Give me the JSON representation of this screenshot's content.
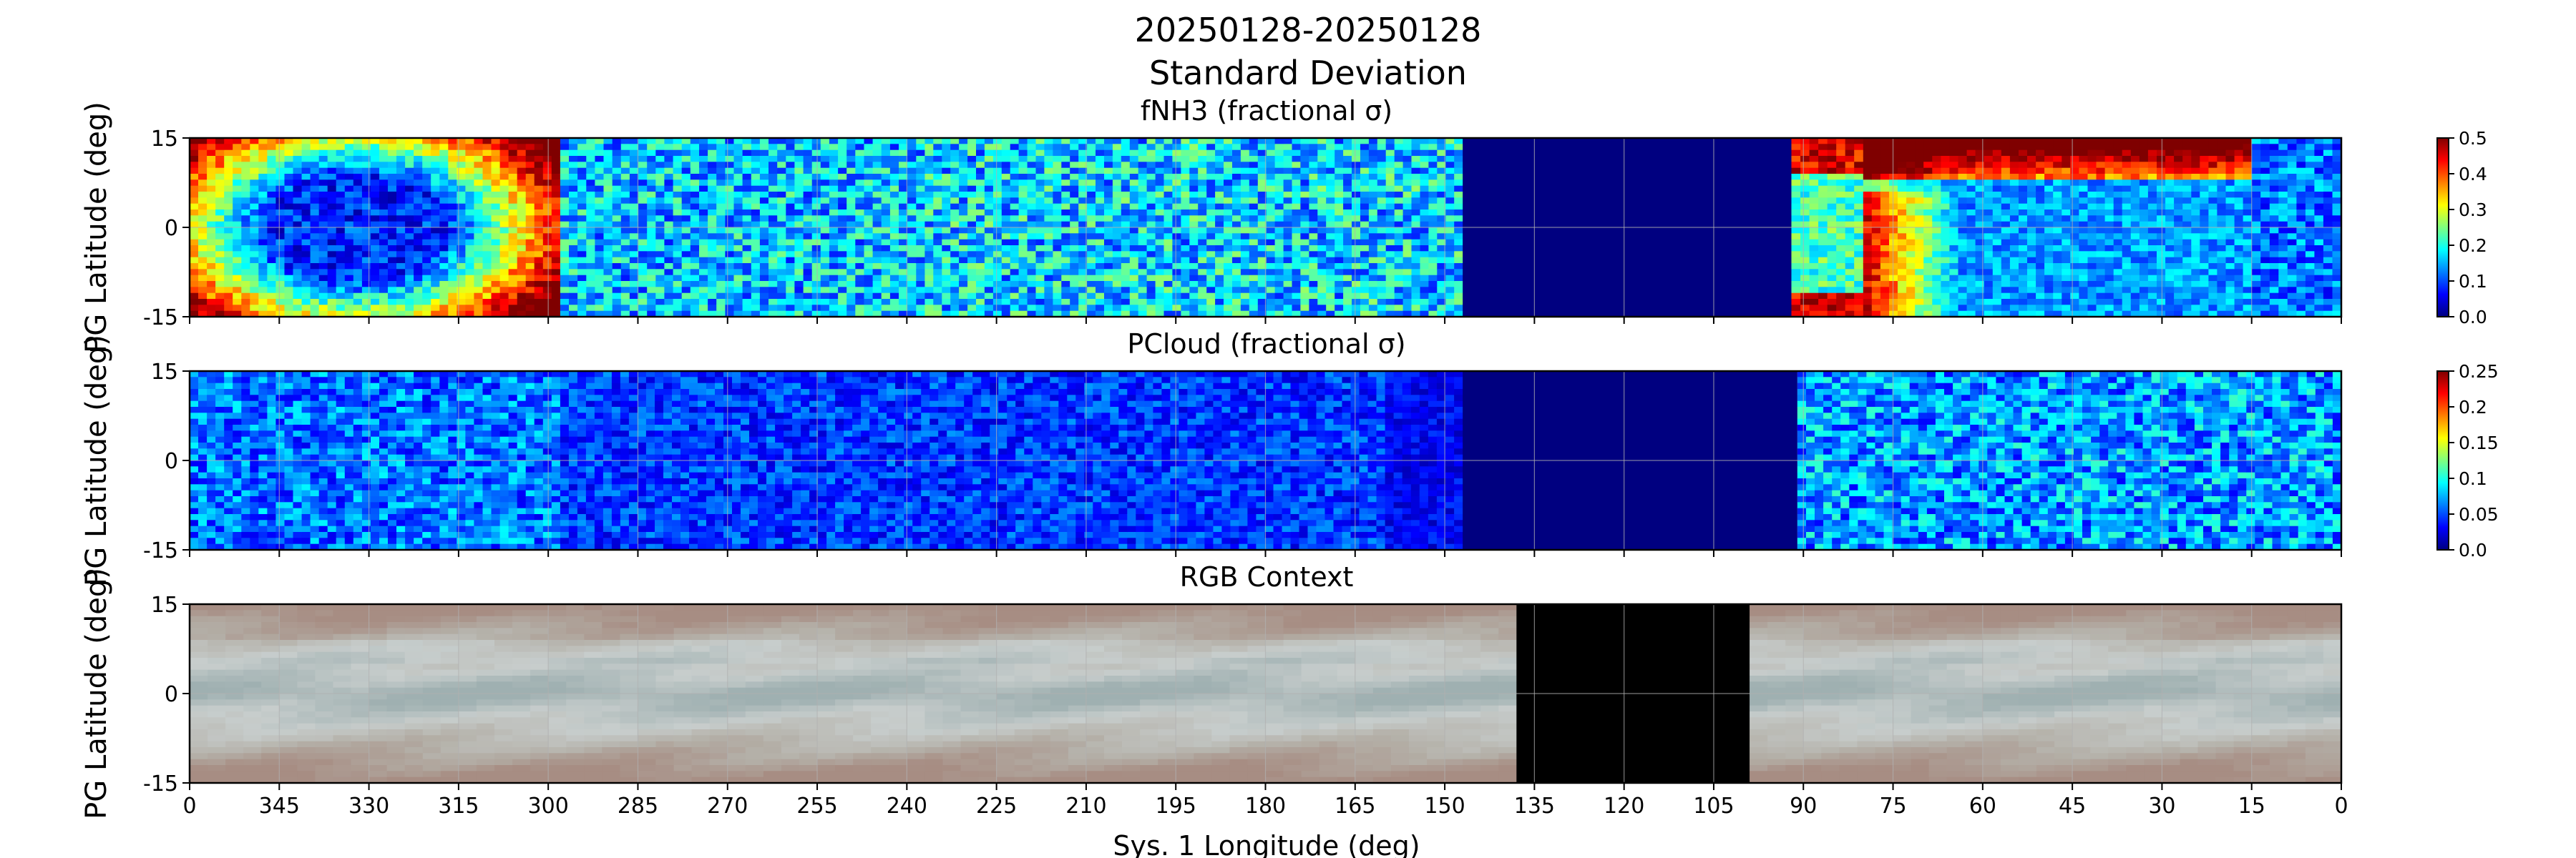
{
  "figure": {
    "title_line1": "20250128-20250128",
    "title_line2": "Standard Deviation",
    "xlabel": "Sys. 1 Longitude (deg)",
    "xticks": [
      "0",
      "345",
      "330",
      "315",
      "300",
      "285",
      "270",
      "255",
      "240",
      "225",
      "210",
      "195",
      "180",
      "165",
      "150",
      "135",
      "120",
      "105",
      "90",
      "75",
      "60",
      "45",
      "30",
      "15",
      "0"
    ]
  },
  "colors": {
    "background": "#ffffff",
    "frame": "#000000",
    "grid": "#b0b0b0",
    "missing": "#000080",
    "rgb_missing": "#000000",
    "jet_stops": [
      "#00007f",
      "#0000ff",
      "#007fff",
      "#00ffff",
      "#7fff7f",
      "#ffff00",
      "#ff7f00",
      "#ff0000",
      "#7f0000"
    ],
    "rgb_stops": [
      "#a78d83",
      "#b4b0a8",
      "#c7cdcc",
      "#9fb0b1"
    ]
  },
  "chart_data": [
    {
      "type": "heatmap",
      "title": "fNH3 (fractional σ)",
      "ylabel": "PG Latitude (deg)",
      "xlabel": "",
      "xlim": [
        360,
        0
      ],
      "ylim": [
        -15,
        15
      ],
      "yticks": [
        "15",
        "0",
        "-15"
      ],
      "colormap": "jet",
      "colorbar": {
        "min": 0.0,
        "max": 0.5,
        "ticks": [
          "0.0",
          "0.1",
          "0.2",
          "0.3",
          "0.4",
          "0.5"
        ]
      },
      "grid": true,
      "swaths": [
        {
          "lon_start": 360,
          "lon_end": 298,
          "mean": 0.38,
          "pattern": "ring"
        },
        {
          "lon_start": 298,
          "lon_end": 237,
          "mean": 0.16,
          "pattern": "patchy"
        },
        {
          "lon_start": 237,
          "lon_end": 147,
          "mean": 0.17,
          "pattern": "patchy"
        },
        {
          "lon_start": 147,
          "lon_end": 92,
          "mean": 0.0,
          "pattern": "missing"
        },
        {
          "lon_start": 92,
          "lon_end": 80,
          "mean": 0.22,
          "pattern": "edge_high"
        },
        {
          "lon_start": 80,
          "lon_end": 15,
          "mean": 0.2,
          "pattern": "upper_high"
        },
        {
          "lon_start": 15,
          "lon_end": 0,
          "mean": 0.12,
          "pattern": "patchy"
        }
      ]
    },
    {
      "type": "heatmap",
      "title": "PCloud (fractional σ)",
      "ylabel": "PG Latitude (deg)",
      "xlabel": "",
      "xlim": [
        360,
        0
      ],
      "ylim": [
        -15,
        15
      ],
      "yticks": [
        "15",
        "0",
        "-15"
      ],
      "colormap": "jet",
      "colorbar": {
        "min": 0.0,
        "max": 0.25,
        "ticks": [
          "0.0",
          "0.05",
          "0.1",
          "0.15",
          "0.2",
          "0.25"
        ]
      },
      "grid": true,
      "swaths": [
        {
          "lon_start": 360,
          "lon_end": 298,
          "mean": 0.06,
          "pattern": "patchy"
        },
        {
          "lon_start": 298,
          "lon_end": 160,
          "mean": 0.045,
          "pattern": "patchy"
        },
        {
          "lon_start": 160,
          "lon_end": 147,
          "mean": 0.03,
          "pattern": "patchy"
        },
        {
          "lon_start": 147,
          "lon_end": 91,
          "mean": 0.0,
          "pattern": "missing"
        },
        {
          "lon_start": 91,
          "lon_end": 0,
          "mean": 0.07,
          "pattern": "patchy"
        }
      ]
    },
    {
      "type": "heatmap",
      "title": "RGB Context",
      "ylabel": "PG Latitude (deg)",
      "xlabel": "Sys. 1 Longitude (deg)",
      "xlim": [
        360,
        0
      ],
      "ylim": [
        -15,
        15
      ],
      "yticks": [
        "15",
        "0",
        "-15"
      ],
      "grid": true,
      "missing_range": [
        138,
        99
      ]
    }
  ]
}
